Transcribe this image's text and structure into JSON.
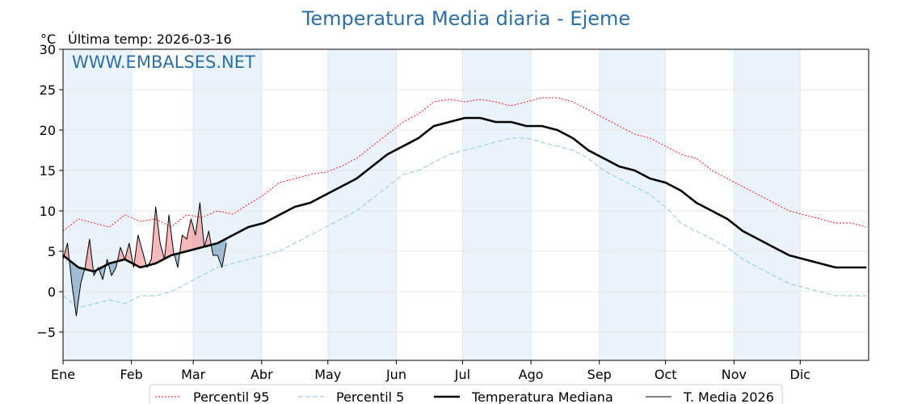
{
  "chart_data": {
    "type": "line",
    "title": "Temperatura Media diaria - Ejeme",
    "unit_label": "°C",
    "subtitle": "Última temp: 2026-03-16",
    "watermark": "WWW.EMBALSES.NET",
    "ylim": [
      -8.5,
      30
    ],
    "yticks": [
      -5,
      0,
      5,
      10,
      15,
      20,
      25,
      30
    ],
    "x_day_range": [
      1,
      366
    ],
    "months": [
      {
        "label": "Ene",
        "day": 1
      },
      {
        "label": "Feb",
        "day": 32
      },
      {
        "label": "Mar",
        "day": 60
      },
      {
        "label": "Abr",
        "day": 91
      },
      {
        "label": "May",
        "day": 121
      },
      {
        "label": "Jun",
        "day": 152
      },
      {
        "label": "Jul",
        "day": 182
      },
      {
        "label": "Ago",
        "day": 213
      },
      {
        "label": "Sep",
        "day": 244
      },
      {
        "label": "Oct",
        "day": 274
      },
      {
        "label": "Nov",
        "day": 305
      },
      {
        "label": "Dic",
        "day": 335
      }
    ],
    "grid": true,
    "legend_position": "bottom",
    "colors": {
      "title": "#2b6fa6",
      "watermark": "#2b6fa6",
      "p95": "#ff0000",
      "p5": "#9fd0e4",
      "median": "#000000",
      "current": "#000000",
      "fill_above": "#f08080",
      "fill_below": "#5f8fb4",
      "band": "#eaf3fb"
    },
    "series": [
      {
        "name": "Percentil 95",
        "key": "p95",
        "x": [
          1,
          8,
          15,
          22,
          29,
          36,
          43,
          50,
          57,
          64,
          71,
          78,
          85,
          92,
          99,
          106,
          113,
          120,
          127,
          134,
          141,
          148,
          155,
          162,
          169,
          176,
          183,
          190,
          197,
          204,
          211,
          218,
          225,
          232,
          239,
          246,
          253,
          260,
          267,
          274,
          281,
          288,
          295,
          302,
          309,
          316,
          323,
          330,
          337,
          344,
          351,
          358,
          365
        ],
        "values": [
          7.5,
          9,
          8.5,
          8,
          9.5,
          8.7,
          9,
          8,
          9.5,
          9.2,
          10,
          9.6,
          10.8,
          12,
          13.5,
          14,
          14.5,
          14.8,
          15.5,
          16.5,
          18,
          19.5,
          21,
          22,
          23.5,
          23.8,
          23.5,
          23.8,
          23.5,
          23,
          23.5,
          24,
          24,
          23.5,
          22.5,
          21.5,
          20.5,
          19.5,
          19,
          18,
          17,
          16.5,
          15,
          14,
          13,
          12,
          11,
          10,
          9.5,
          9,
          8.5,
          8.5,
          8
        ]
      },
      {
        "name": "Percentil 5",
        "key": "p5",
        "x": [
          1,
          8,
          15,
          22,
          29,
          36,
          43,
          50,
          57,
          64,
          71,
          78,
          85,
          92,
          99,
          106,
          113,
          120,
          127,
          134,
          141,
          148,
          155,
          162,
          169,
          176,
          183,
          190,
          197,
          204,
          211,
          218,
          225,
          232,
          239,
          246,
          253,
          260,
          267,
          274,
          281,
          288,
          295,
          302,
          309,
          316,
          323,
          330,
          337,
          344,
          351,
          358,
          365
        ],
        "values": [
          -0.5,
          -2,
          -1.5,
          -1,
          -1.5,
          -0.5,
          -0.5,
          0,
          1,
          2,
          3,
          3.5,
          4,
          4.5,
          5,
          6,
          7,
          8,
          9,
          10,
          11.5,
          13,
          14.5,
          15,
          16,
          17,
          17.5,
          18,
          18.5,
          19,
          19,
          18.5,
          18,
          17.5,
          16.5,
          15,
          14,
          13,
          12,
          10.5,
          8.5,
          7.5,
          6.5,
          5.5,
          4,
          3,
          2,
          1,
          0.5,
          0,
          -0.5,
          -0.5,
          -0.5
        ]
      },
      {
        "name": "Temperatura Mediana",
        "key": "median",
        "x": [
          1,
          8,
          15,
          22,
          29,
          36,
          43,
          50,
          57,
          64,
          71,
          78,
          85,
          92,
          99,
          106,
          113,
          120,
          127,
          134,
          141,
          148,
          155,
          162,
          169,
          176,
          183,
          190,
          197,
          204,
          211,
          218,
          225,
          232,
          239,
          246,
          253,
          260,
          267,
          274,
          281,
          288,
          295,
          302,
          309,
          316,
          323,
          330,
          337,
          344,
          351,
          358,
          365
        ],
        "values": [
          4.5,
          3,
          2.5,
          3.5,
          4,
          3,
          3.5,
          4.5,
          5,
          5.5,
          6,
          7,
          8,
          8.5,
          9.5,
          10.5,
          11,
          12,
          13,
          14,
          15.5,
          17,
          18,
          19,
          20.5,
          21,
          21.5,
          21.5,
          21,
          21,
          20.5,
          20.5,
          20,
          19,
          17.5,
          16.5,
          15.5,
          15,
          14,
          13.5,
          12.5,
          11,
          10,
          9,
          7.5,
          6.5,
          5.5,
          4.5,
          4,
          3.5,
          3,
          3,
          3
        ]
      },
      {
        "name": "T. Media 2026",
        "key": "current",
        "x": [
          1,
          3,
          5,
          7,
          9,
          11,
          13,
          15,
          17,
          19,
          21,
          23,
          25,
          27,
          29,
          31,
          33,
          35,
          37,
          39,
          41,
          43,
          45,
          47,
          49,
          51,
          53,
          55,
          57,
          59,
          61,
          63,
          65,
          67,
          69,
          71,
          73,
          75
        ],
        "values": [
          4,
          6,
          1,
          -3,
          1,
          3,
          6.5,
          2,
          3,
          1.5,
          4,
          2,
          3,
          5.5,
          4,
          6,
          3,
          7,
          5,
          3,
          4,
          10.5,
          6,
          4,
          9.5,
          5,
          3,
          7,
          6.5,
          9,
          7,
          11,
          5.5,
          7.5,
          4.5,
          4.5,
          3,
          6
        ]
      }
    ]
  },
  "legend": {
    "items": [
      {
        "label": "Percentil 95"
      },
      {
        "label": "Percentil 5"
      },
      {
        "label": "Temperatura Mediana"
      },
      {
        "label": "T. Media 2026"
      }
    ]
  }
}
